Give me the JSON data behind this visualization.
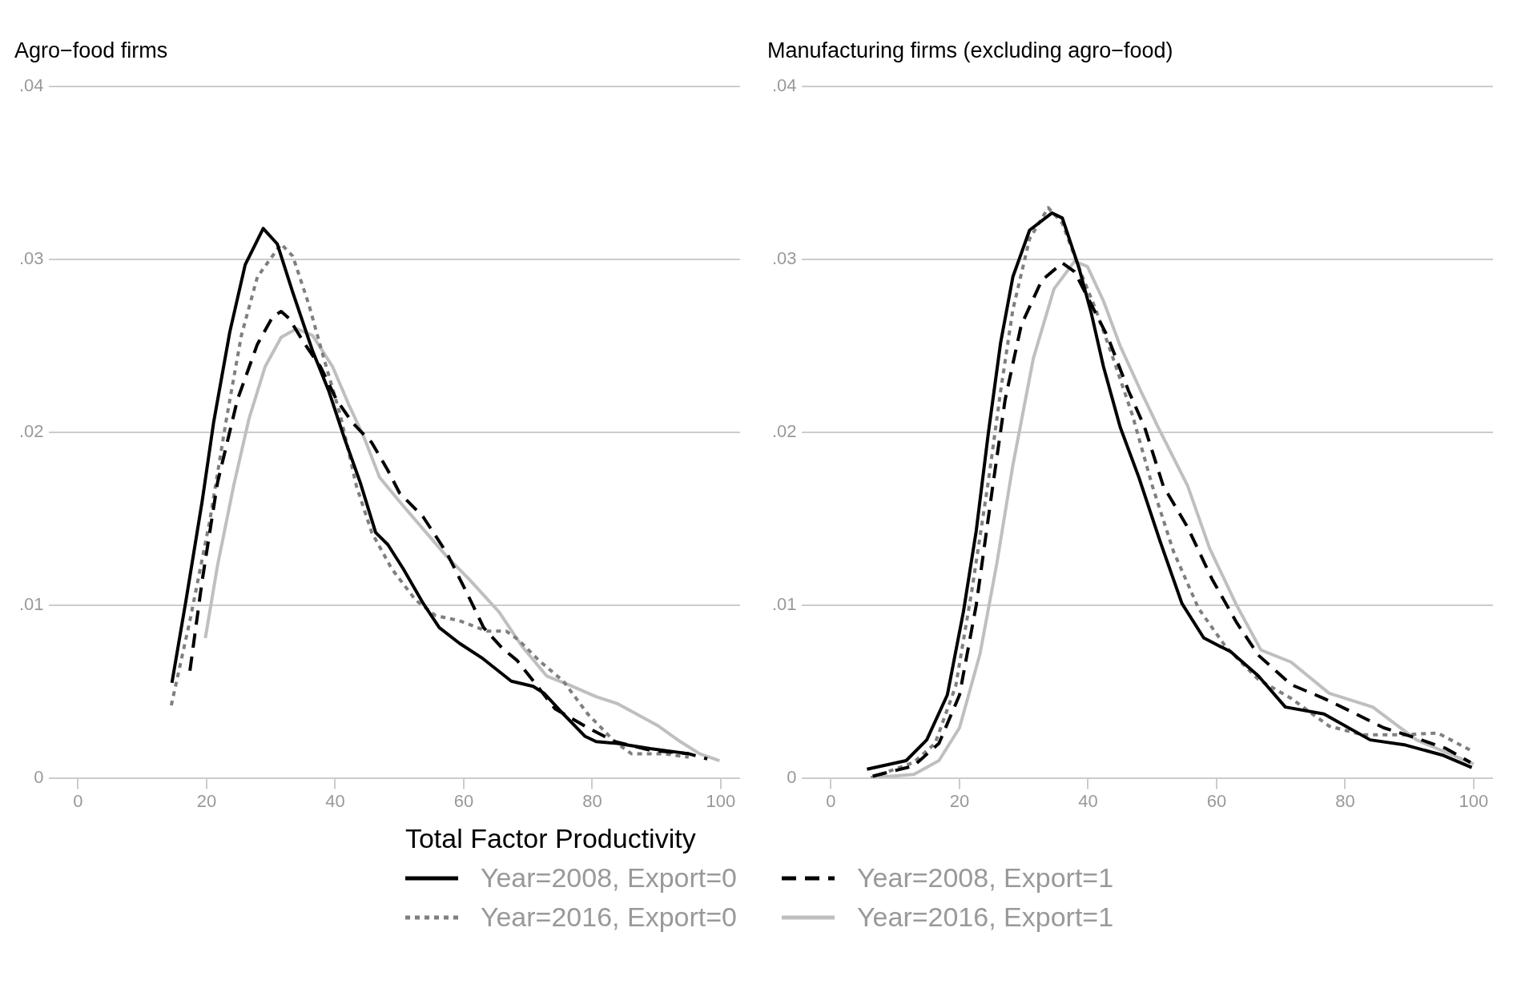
{
  "chart_data": [
    {
      "type": "line",
      "title": "Agro−food firms",
      "legend": "bottom",
      "legend_title": "Total Factor Productivity",
      "grid": "y",
      "xlim": [
        -4.6,
        103
      ],
      "ylim": [
        0,
        0.04
      ],
      "xticks": [
        0,
        20,
        40,
        60,
        80,
        100
      ],
      "yticks": [
        0,
        {
          "value": 0.01,
          "label": ".01"
        },
        {
          "value": 0.02,
          "label": ".02"
        },
        {
          "value": 0.03,
          "label": ".03"
        },
        {
          "value": 0.04,
          "label": ".04"
        }
      ],
      "series": [
        {
          "name": "Year=2008, Export=0",
          "color": "#000000",
          "line_style": "solid",
          "x": [
            14.6,
            16.8,
            19.3,
            21.1,
            23.6,
            26.0,
            28.8,
            31.0,
            33.4,
            36.5,
            39.0,
            41.4,
            43.9,
            46.3,
            48.2,
            50.6,
            53.7,
            56.2,
            59.3,
            63.0,
            67.4,
            70.8,
            72.5,
            75.5,
            78.9,
            80.6,
            83.9,
            89.0,
            95.0
          ],
          "values": [
            0.0055,
            0.0103,
            0.016,
            0.0206,
            0.0258,
            0.0297,
            0.0318,
            0.0309,
            0.0281,
            0.0247,
            0.0224,
            0.0197,
            0.0171,
            0.0142,
            0.0135,
            0.0121,
            0.0101,
            0.0087,
            0.0078,
            0.0069,
            0.0056,
            0.0053,
            0.0049,
            0.0037,
            0.0024,
            0.0021,
            0.002,
            0.0017,
            0.0014
          ]
        },
        {
          "name": "Year=2008, Export=1",
          "color": "#000000",
          "line_style": "dashed",
          "x": [
            17.4,
            19.3,
            21.7,
            24.8,
            27.9,
            30.3,
            31.6,
            32.8,
            35.3,
            37.7,
            40.2,
            42.6,
            45.7,
            48.2,
            50.0,
            53.7,
            57.4,
            60.5,
            63.1,
            66.0,
            68.3,
            71.7,
            74.2,
            79.3,
            83.5,
            89.0,
            95.0,
            97.9
          ],
          "values": [
            0.0062,
            0.0114,
            0.0171,
            0.0219,
            0.0251,
            0.0267,
            0.027,
            0.0266,
            0.0251,
            0.0238,
            0.0219,
            0.0206,
            0.0194,
            0.0178,
            0.0165,
            0.0151,
            0.013,
            0.0107,
            0.0087,
            0.0075,
            0.0068,
            0.0052,
            0.004,
            0.0029,
            0.0021,
            0.0016,
            0.0014,
            0.0011
          ]
        },
        {
          "name": "Year=2016, Export=0",
          "color": "#7f7f7f",
          "line_style": "dotted",
          "x": [
            14.5,
            17.4,
            20.5,
            23.0,
            25.4,
            27.9,
            31.6,
            33.4,
            35.9,
            38.3,
            40.8,
            43.3,
            45.7,
            48.8,
            52.5,
            55.6,
            59.3,
            63.6,
            66.6,
            68.5,
            71.7,
            75.5,
            79.3,
            83.5,
            86.1,
            91.1,
            95.0
          ],
          "values": [
            0.0042,
            0.0091,
            0.0149,
            0.0206,
            0.0256,
            0.029,
            0.0309,
            0.0302,
            0.0274,
            0.0242,
            0.021,
            0.0169,
            0.0142,
            0.0121,
            0.0103,
            0.0094,
            0.0091,
            0.0085,
            0.0085,
            0.008,
            0.0068,
            0.0056,
            0.0037,
            0.0021,
            0.0014,
            0.0014,
            0.0012
          ]
        },
        {
          "name": "Year=2016, Export=1",
          "color": "#bfbfbf",
          "line_style": "solid",
          "x": [
            19.8,
            21.7,
            24.2,
            26.6,
            29.1,
            31.6,
            34.0,
            36.5,
            39.6,
            42.0,
            44.5,
            46.9,
            50.0,
            53.7,
            57.4,
            61.1,
            65.5,
            69.1,
            72.9,
            76.3,
            80.6,
            83.9,
            90.3,
            93.7,
            96.7,
            99.8
          ],
          "values": [
            0.0081,
            0.0123,
            0.0169,
            0.0208,
            0.0238,
            0.0255,
            0.026,
            0.0256,
            0.0238,
            0.0217,
            0.0197,
            0.0174,
            0.016,
            0.0144,
            0.0128,
            0.0114,
            0.0096,
            0.0076,
            0.0059,
            0.0054,
            0.0047,
            0.0043,
            0.003,
            0.0021,
            0.0014,
            0.001
          ]
        }
      ]
    },
    {
      "type": "line",
      "title": "Manufacturing firms (excluding agro−food)",
      "grid": "y",
      "xlim": [
        -4.6,
        103
      ],
      "ylim": [
        0,
        0.04
      ],
      "xticks": [
        0,
        20,
        40,
        60,
        80,
        100
      ],
      "yticks": [
        0,
        {
          "value": 0.01,
          "label": ".01"
        },
        {
          "value": 0.02,
          "label": ".02"
        },
        {
          "value": 0.03,
          "label": ".03"
        },
        {
          "value": 0.04,
          "label": ".04"
        }
      ],
      "series": [
        {
          "color": "#000000",
          "line_style": "solid",
          "x": [
            5.6,
            11.7,
            14.9,
            18.1,
            20.6,
            22.6,
            24.5,
            26.4,
            28.3,
            30.9,
            34.4,
            36.0,
            38.6,
            40.5,
            42.4,
            45.0,
            47.9,
            51.2,
            54.6,
            58.0,
            62.2,
            66.5,
            70.7,
            76.7,
            83.9,
            89.4,
            95.3,
            99.7
          ],
          "values": [
            0.0005,
            0.001,
            0.0022,
            0.0048,
            0.0096,
            0.0143,
            0.02,
            0.0252,
            0.029,
            0.0317,
            0.0327,
            0.0324,
            0.0295,
            0.0269,
            0.0238,
            0.0203,
            0.0174,
            0.0137,
            0.0101,
            0.0081,
            0.0073,
            0.0059,
            0.0041,
            0.0037,
            0.0022,
            0.0019,
            0.0013,
            0.0006
          ]
        },
        {
          "color": "#000000",
          "line_style": "dashed",
          "x": [
            6.5,
            12.9,
            16.8,
            20.0,
            22.6,
            25.1,
            27.1,
            29.6,
            32.8,
            36.0,
            37.9,
            40.5,
            43.1,
            46.3,
            48.8,
            51.7,
            55.5,
            59.3,
            63.1,
            66.5,
            71.6,
            76.7,
            81.7,
            86.0,
            91.1,
            95.7,
            99.5
          ],
          "values": [
            0.0001,
            0.0007,
            0.002,
            0.0048,
            0.01,
            0.0167,
            0.0219,
            0.0262,
            0.0288,
            0.0298,
            0.0293,
            0.0274,
            0.0255,
            0.0224,
            0.0203,
            0.0169,
            0.0145,
            0.0115,
            0.009,
            0.0071,
            0.0054,
            0.0046,
            0.0037,
            0.0029,
            0.0023,
            0.0017,
            0.0009
          ]
        },
        {
          "color": "#7f7f7f",
          "line_style": "dotted",
          "x": [
            6.2,
            12.9,
            16.2,
            19.4,
            21.9,
            24.5,
            26.4,
            28.3,
            30.9,
            33.8,
            36.0,
            38.6,
            41.2,
            43.7,
            46.9,
            50.0,
            53.3,
            57.2,
            61.4,
            66.5,
            71.6,
            77.5,
            82.6,
            89.4,
            94.4,
            99.5
          ],
          "values": [
            0,
            0.0009,
            0.002,
            0.0053,
            0.0108,
            0.0172,
            0.0224,
            0.0271,
            0.0312,
            0.033,
            0.0321,
            0.0295,
            0.0271,
            0.0245,
            0.021,
            0.0169,
            0.0131,
            0.0098,
            0.0076,
            0.0057,
            0.0046,
            0.003,
            0.0025,
            0.0025,
            0.0026,
            0.0016
          ]
        },
        {
          "color": "#bfbfbf",
          "line_style": "solid",
          "x": [
            6.2,
            12.9,
            16.8,
            20.0,
            23.2,
            25.8,
            28.3,
            31.5,
            34.7,
            37.9,
            39.9,
            42.4,
            45.0,
            48.2,
            50.9,
            55.5,
            58.9,
            63.1,
            66.9,
            71.6,
            77.5,
            84.3,
            91.1,
            100.0
          ],
          "values": [
            0,
            0.0002,
            0.001,
            0.0029,
            0.0072,
            0.0124,
            0.0181,
            0.0243,
            0.0283,
            0.0299,
            0.0296,
            0.0276,
            0.025,
            0.0224,
            0.0203,
            0.0169,
            0.0133,
            0.01,
            0.0074,
            0.0067,
            0.0049,
            0.0041,
            0.0022,
            0.0008
          ]
        }
      ]
    }
  ]
}
